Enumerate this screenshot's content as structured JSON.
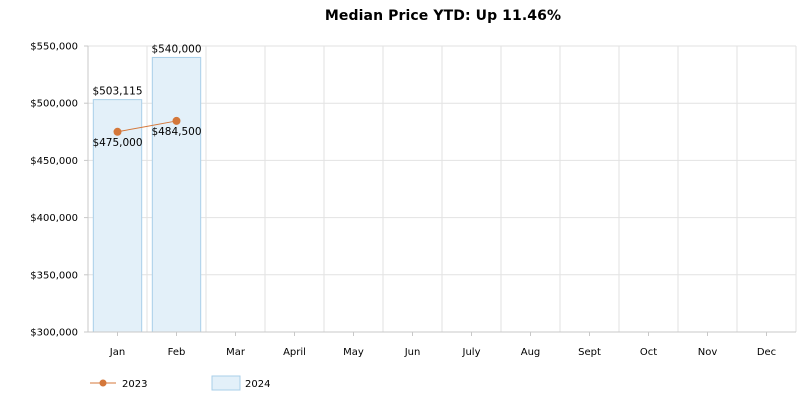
{
  "chart_data": {
    "type": "bar",
    "title": "Median Price YTD: Up 11.46%",
    "categories": [
      "Jan",
      "Feb",
      "Mar",
      "April",
      "May",
      "Jun",
      "July",
      "Aug",
      "Sept",
      "Oct",
      "Nov",
      "Dec"
    ],
    "ylim": [
      300000,
      550000
    ],
    "y_ticks": [
      300000,
      350000,
      400000,
      450000,
      500000,
      550000
    ],
    "y_tick_labels": [
      "$300,000",
      "$350,000",
      "$400,000",
      "$450,000",
      "$500,000",
      "$550,000"
    ],
    "grid": true,
    "legend_position": "bottom-left",
    "series": [
      {
        "name": "2023",
        "type": "line",
        "color": "#d4773a",
        "values": [
          475000,
          484500,
          null,
          null,
          null,
          null,
          null,
          null,
          null,
          null,
          null,
          null
        ],
        "labels": [
          "$475,000",
          "$484,500"
        ]
      },
      {
        "name": "2024",
        "type": "bar",
        "color": "#e3f0f9",
        "border": "#a9cfe9",
        "values": [
          503115,
          540000,
          null,
          null,
          null,
          null,
          null,
          null,
          null,
          null,
          null,
          null
        ],
        "labels": [
          "$503,115",
          "$540,000"
        ]
      }
    ]
  }
}
